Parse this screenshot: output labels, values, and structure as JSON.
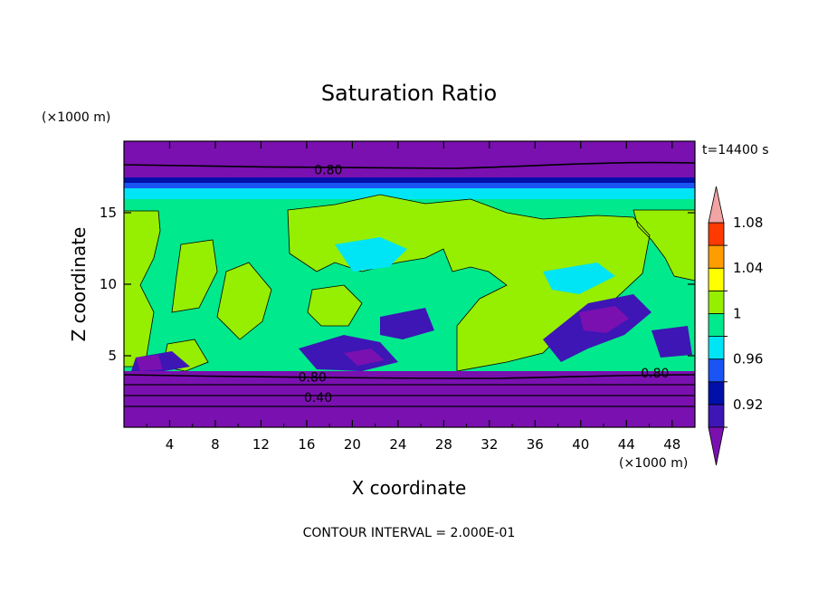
{
  "chart_data": {
    "type": "heatmap",
    "title": "Saturation Ratio",
    "xlabel": "X coordinate",
    "ylabel": "Z coordinate",
    "x_unit": "(×1000 m)",
    "y_unit": "(×1000 m)",
    "time_label": "t=14400 s",
    "footer": "CONTOUR INTERVAL = 2.000E-01",
    "xlim": [
      0,
      50
    ],
    "ylim": [
      0,
      20
    ],
    "x_ticks": [
      "4",
      "8",
      "12",
      "16",
      "20",
      "24",
      "28",
      "32",
      "36",
      "40",
      "44",
      "48"
    ],
    "y_ticks": [
      "5",
      "10",
      "15"
    ],
    "colorbar": {
      "tick_labels": [
        "0.92",
        "0.96",
        "1",
        "1.04",
        "1.08"
      ],
      "levels": [
        0.9,
        0.92,
        0.94,
        0.96,
        0.98,
        1.0,
        1.02,
        1.04,
        1.06,
        1.08,
        1.1
      ],
      "colors": [
        "#7a10b0",
        "#3d16b5",
        "#0010a8",
        "#1a54f5",
        "#00e5f5",
        "#00e98c",
        "#96ee00",
        "#ffff00",
        "#ff9d00",
        "#ff3a00",
        "#f2a3a3"
      ]
    },
    "contour_labels": [
      {
        "text": "0.80",
        "x": 17.9,
        "y": 18.0
      },
      {
        "text": "0.80",
        "x": 16.5,
        "y": 3.5
      },
      {
        "text": "0.40",
        "x": 17.0,
        "y": 2.1
      },
      {
        "text": "0.80",
        "x": 46.5,
        "y": 3.8
      }
    ],
    "approx_fields": {
      "top_dry_band": {
        "z_from": 17.5,
        "z_to": 20,
        "value": 0.9
      },
      "upper_transition": {
        "z_from": 16,
        "z_to": 17.5,
        "value": 0.95
      },
      "middle_layer": {
        "z_from": 4,
        "z_to": 16,
        "value": 1.0
      },
      "lower_dry_band": {
        "z_from": 0,
        "z_to": 4,
        "value": 0.9
      }
    }
  }
}
